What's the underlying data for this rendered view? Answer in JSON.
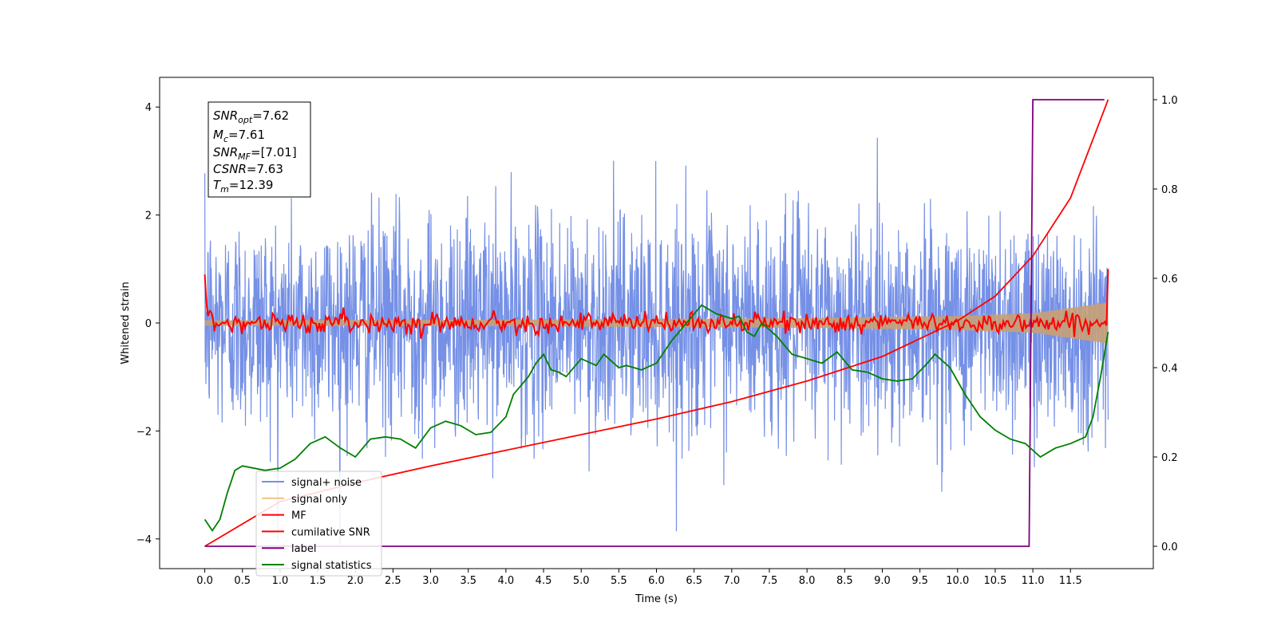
{
  "chart_data": {
    "type": "line",
    "xlabel": "Time (s)",
    "ylabel": "Whitened strain",
    "xlim": [
      -0.6,
      12.6
    ],
    "ylim": [
      -4.55,
      4.55
    ],
    "y2lim": [
      -0.05,
      1.05
    ],
    "x_ticks": [
      "0.0",
      "0.5",
      "1.0",
      "1.5",
      "2.0",
      "2.5",
      "3.0",
      "3.5",
      "4.0",
      "4.5",
      "5.0",
      "5.5",
      "6.0",
      "6.5",
      "7.0",
      "7.5",
      "8.0",
      "8.5",
      "9.0",
      "9.5",
      "10.0",
      "10.5",
      "11.0",
      "11.5"
    ],
    "y_ticks": [
      "4",
      "2",
      "0",
      "−2",
      "−4"
    ],
    "y2_ticks": [
      "1.0",
      "0.8",
      "0.6",
      "0.4",
      "0.2",
      "0.0"
    ],
    "annotations": {
      "snr_opt": {
        "symbol": "SNR",
        "sub": "opt",
        "value": "=7.62"
      },
      "mc": {
        "symbol": "M",
        "sub": "c",
        "value": "=7.61"
      },
      "snr_mf": {
        "symbol": "SNR",
        "sub": "MF",
        "value": "=[7.01]"
      },
      "csnr": {
        "symbol": "CSNR",
        "sub": "",
        "value": "=7.63"
      },
      "tm": {
        "symbol": "T",
        "sub": "m",
        "value": "=12.39"
      }
    },
    "legend_position": "lower-left",
    "series": [
      {
        "name": "signal+ noise",
        "color": "#7590e6",
        "axis": "left",
        "description_values": {
          "mean": 0.0,
          "std": 1.0,
          "xrange": [
            0.0,
            12.0
          ]
        }
      },
      {
        "name": "signal only",
        "color": "#f5c27a",
        "axis": "left",
        "envelope": {
          "x": [
            0.0,
            4.0,
            8.0,
            10.0,
            11.0,
            12.0
          ],
          "amp": [
            0.05,
            0.06,
            0.09,
            0.13,
            0.18,
            0.38
          ]
        }
      },
      {
        "name": "MF",
        "color": "#ff0000",
        "axis": "left",
        "start_value": 0.9,
        "end_value": 1.0,
        "xrange": [
          0.0,
          12.0
        ]
      },
      {
        "name": "cumilative SNR",
        "color": "#ff0000",
        "axis": "right",
        "x": [
          0.0,
          1.0,
          2.0,
          3.0,
          4.0,
          5.0,
          6.0,
          7.0,
          8.0,
          9.0,
          10.0,
          10.5,
          11.0,
          11.5,
          12.0
        ],
        "values": [
          0.0,
          0.1,
          0.142,
          0.18,
          0.215,
          0.25,
          0.285,
          0.324,
          0.37,
          0.425,
          0.505,
          0.56,
          0.65,
          0.78,
          1.0
        ]
      },
      {
        "name": "label",
        "color": "#800080",
        "axis": "right",
        "x": [
          0.0,
          10.95,
          11.0,
          11.95
        ],
        "values": [
          0.0,
          0.0,
          1.0,
          1.0
        ]
      },
      {
        "name": "signal statistics",
        "color": "#008000",
        "axis": "right",
        "x": [
          0.0,
          0.1,
          0.2,
          0.3,
          0.4,
          0.5,
          0.8,
          1.0,
          1.2,
          1.4,
          1.6,
          1.8,
          2.0,
          2.2,
          2.4,
          2.6,
          2.8,
          3.0,
          3.2,
          3.4,
          3.6,
          3.8,
          4.0,
          4.1,
          4.2,
          4.3,
          4.4,
          4.5,
          4.6,
          4.7,
          4.8,
          5.0,
          5.2,
          5.3,
          5.5,
          5.6,
          5.8,
          6.0,
          6.2,
          6.4,
          6.6,
          6.8,
          7.0,
          7.1,
          7.2,
          7.3,
          7.4,
          7.6,
          7.8,
          8.0,
          8.2,
          8.4,
          8.6,
          8.8,
          9.0,
          9.2,
          9.4,
          9.6,
          9.7,
          9.9,
          10.1,
          10.3,
          10.5,
          10.7,
          10.9,
          11.1,
          11.3,
          11.5,
          11.7,
          11.8,
          11.9,
          12.0
        ],
        "values": [
          0.06,
          0.035,
          0.06,
          0.12,
          0.17,
          0.18,
          0.17,
          0.175,
          0.195,
          0.23,
          0.245,
          0.22,
          0.2,
          0.24,
          0.245,
          0.24,
          0.22,
          0.265,
          0.28,
          0.27,
          0.25,
          0.255,
          0.29,
          0.34,
          0.36,
          0.38,
          0.41,
          0.43,
          0.395,
          0.39,
          0.38,
          0.42,
          0.405,
          0.43,
          0.4,
          0.405,
          0.395,
          0.41,
          0.46,
          0.5,
          0.54,
          0.52,
          0.51,
          0.515,
          0.48,
          0.47,
          0.5,
          0.47,
          0.43,
          0.42,
          0.41,
          0.435,
          0.395,
          0.39,
          0.375,
          0.37,
          0.375,
          0.41,
          0.43,
          0.4,
          0.34,
          0.29,
          0.26,
          0.24,
          0.23,
          0.2,
          0.22,
          0.23,
          0.245,
          0.29,
          0.38,
          0.48
        ]
      }
    ]
  }
}
